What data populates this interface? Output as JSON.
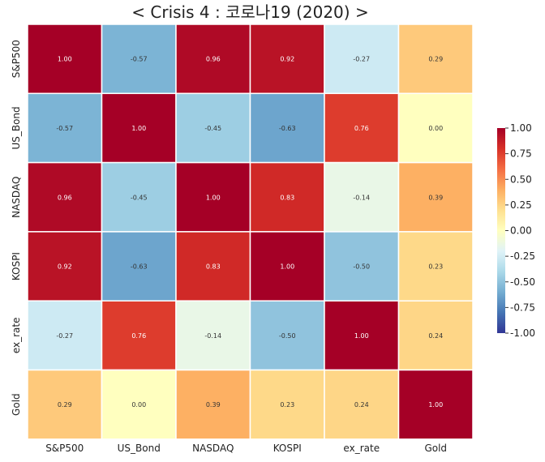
{
  "chart_data": {
    "type": "heatmap",
    "title": "< Crisis 4 : 코로나19 (2020) >",
    "row_labels": [
      "S&P500",
      "US_Bond",
      "NASDAQ",
      "KOSPI",
      "ex_rate",
      "Gold"
    ],
    "col_labels": [
      "S&P500",
      "US_Bond",
      "NASDAQ",
      "KOSPI",
      "ex_rate",
      "Gold"
    ],
    "values": [
      [
        1.0,
        -0.57,
        0.96,
        0.92,
        -0.27,
        0.29
      ],
      [
        -0.57,
        1.0,
        -0.45,
        -0.63,
        0.76,
        0.0
      ],
      [
        0.96,
        -0.45,
        1.0,
        0.83,
        -0.14,
        0.39
      ],
      [
        0.92,
        -0.63,
        0.83,
        1.0,
        -0.5,
        0.23
      ],
      [
        -0.27,
        0.76,
        -0.14,
        -0.5,
        1.0,
        0.24
      ],
      [
        0.29,
        0.0,
        0.39,
        0.23,
        0.24,
        1.0
      ]
    ],
    "labels": [
      [
        "1.00",
        "-0.57",
        "0.96",
        "0.92",
        "-0.27",
        "0.29"
      ],
      [
        "-0.57",
        "1.00",
        "-0.45",
        "-0.63",
        "0.76",
        "0.00"
      ],
      [
        "0.96",
        "-0.45",
        "1.00",
        "0.83",
        "-0.14",
        "0.39"
      ],
      [
        "0.92",
        "-0.63",
        "0.83",
        "1.00",
        "-0.50",
        "0.23"
      ],
      [
        "-0.27",
        "0.76",
        "-0.14",
        "-0.50",
        "1.00",
        "0.24"
      ],
      [
        "0.29",
        "0.00",
        "0.39",
        "0.23",
        "0.24",
        "1.00"
      ]
    ],
    "vmin": -1.0,
    "vmax": 1.0,
    "colormap": "RdYlBu_r",
    "colorbar_ticks": [
      1.0,
      0.75,
      0.5,
      0.25,
      0.0,
      -0.25,
      -0.5,
      -0.75,
      -1.0
    ],
    "colorbar_tick_labels": [
      "1.00",
      "0.75",
      "0.50",
      "0.25",
      "0.00",
      "-0.25",
      "-0.50",
      "-0.75",
      "-1.00"
    ],
    "grid_line_color": "#ffffff"
  }
}
